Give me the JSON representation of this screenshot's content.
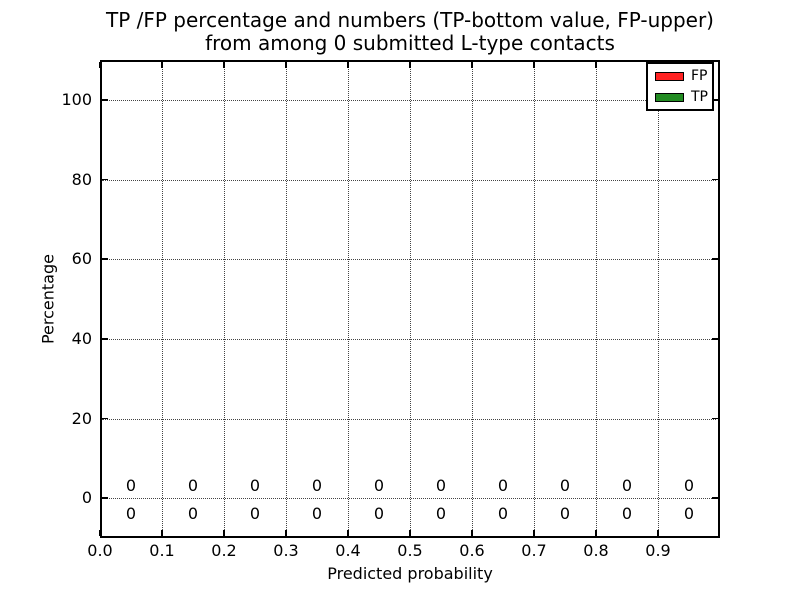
{
  "chart_data": {
    "type": "bar",
    "title_line1": "TP /FP percentage and numbers (TP-bottom value, FP-upper)",
    "title_line2": "from among 0 submitted L-type contacts",
    "xlabel": "Predicted probability",
    "ylabel": "Percentage",
    "xlim": [
      0.0,
      1.0
    ],
    "ylim": [
      -10,
      110
    ],
    "x_tick_values": [
      0.0,
      0.1,
      0.2,
      0.3,
      0.4,
      0.5,
      0.6,
      0.7,
      0.8,
      0.9
    ],
    "x_tick_labels": [
      "0.0",
      "0.1",
      "0.2",
      "0.3",
      "0.4",
      "0.5",
      "0.6",
      "0.7",
      "0.8",
      "0.9"
    ],
    "y_tick_values": [
      0,
      20,
      40,
      60,
      80,
      100
    ],
    "y_tick_labels": [
      "0",
      "20",
      "40",
      "60",
      "80",
      "100"
    ],
    "grid": true,
    "grid_style": "dotted",
    "x": [
      0.05,
      0.15,
      0.25,
      0.35,
      0.45,
      0.55,
      0.65,
      0.75,
      0.85,
      0.95
    ],
    "series": [
      {
        "name": "TP",
        "color": "#228B22",
        "values": [
          0,
          0,
          0,
          0,
          0,
          0,
          0,
          0,
          0,
          0
        ],
        "value_label_y": -4
      },
      {
        "name": "FP",
        "color": "#FF2222",
        "values": [
          0,
          0,
          0,
          0,
          0,
          0,
          0,
          0,
          0,
          0
        ],
        "value_label_y": 3
      }
    ],
    "legend": {
      "position": "upper right",
      "entries": [
        {
          "label": "TP",
          "color": "#228B22"
        },
        {
          "label": "FP",
          "color": "#FF2222"
        }
      ]
    },
    "colors": {
      "axis": "#000000",
      "grid": "#444444",
      "background": "#ffffff"
    }
  }
}
